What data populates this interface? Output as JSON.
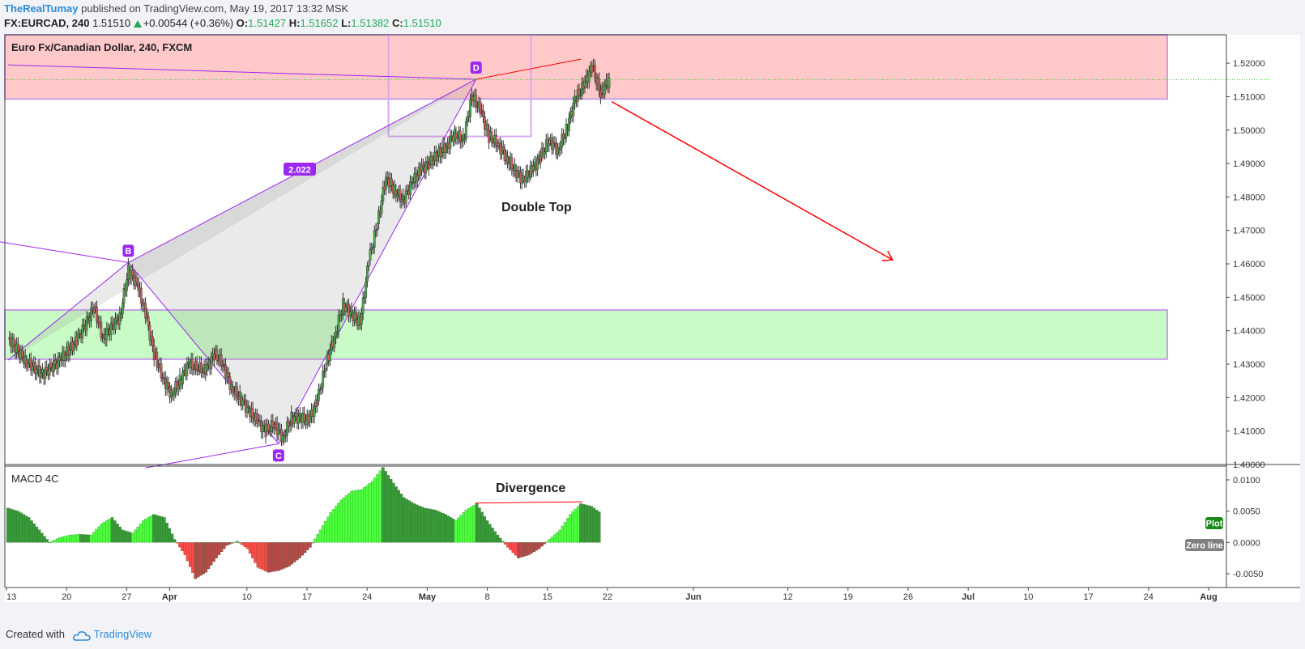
{
  "header": {
    "user": "TheRealTumay",
    "published": "published on TradingView.com, May 19, 2017 13:32 MSK",
    "symbol": "FX:EURCAD, 240",
    "price": "1.51510",
    "change": "+0.00544 (+0.36%)",
    "o_label": "O:",
    "o": "1.51427",
    "h_label": "H:",
    "h": "1.51652",
    "l_label": "L:",
    "l": "1.51382",
    "c_label": "C:",
    "c": "1.51510"
  },
  "footer": {
    "created_with": "Created with",
    "brand": "TradingView",
    "icon": "cloud-icon"
  },
  "colors": {
    "up": "#26a65b",
    "link": "#2e8bd6",
    "harmonic": "#9c27f0",
    "arrow": "#ff0000",
    "resistance_zone": "#ffc9c9",
    "support_zone": "#c8fbc5",
    "macd_up_strong": "#4cff3c",
    "macd_up_weak": "#3a9a3a",
    "macd_down_strong": "#ff4a4a",
    "macd_down_weak": "#b84b4b"
  },
  "chart_data": {
    "type": "candlestick",
    "title": "Euro Fx/Canadian Dollar, 240, FXCM",
    "ylim": [
      1.4,
      1.5285
    ],
    "y_ticks": [
      "1.52000",
      "1.51000",
      "1.50000",
      "1.49000",
      "1.48000",
      "1.47000",
      "1.46000",
      "1.45000",
      "1.44000",
      "1.43000",
      "1.42000",
      "1.41000",
      "1.40000"
    ],
    "x_ticks": [
      "13",
      "20",
      "27",
      "Apr",
      "10",
      "17",
      "24",
      "May",
      "8",
      "15",
      "22",
      "Jun",
      "12",
      "19",
      "26",
      "Jul",
      "10",
      "17",
      "24",
      "Aug"
    ],
    "x_tick_days": [
      0,
      7,
      14,
      19,
      28,
      35,
      42,
      49,
      56,
      63,
      70,
      80,
      91,
      98,
      105,
      112,
      119,
      126,
      133,
      140
    ],
    "current_price": 1.5151,
    "annotations": {
      "ratio": "2.022",
      "pattern_text": "Double Top",
      "macd_text": "Divergence"
    },
    "points": [
      {
        "label": "B",
        "day": 14.0,
        "price": 1.4604
      },
      {
        "label": "C",
        "day": 31.5,
        "price": 1.4062
      },
      {
        "label": "D",
        "day": 54.5,
        "price": 1.5152
      }
    ],
    "series": [
      {
        "day": 0,
        "price": 1.438
      },
      {
        "day": 2,
        "price": 1.431
      },
      {
        "day": 4,
        "price": 1.427
      },
      {
        "day": 6,
        "price": 1.431
      },
      {
        "day": 8,
        "price": 1.437
      },
      {
        "day": 10,
        "price": 1.447
      },
      {
        "day": 11,
        "price": 1.438
      },
      {
        "day": 13,
        "price": 1.444
      },
      {
        "day": 14,
        "price": 1.458
      },
      {
        "day": 15,
        "price": 1.454
      },
      {
        "day": 16,
        "price": 1.445
      },
      {
        "day": 17,
        "price": 1.433
      },
      {
        "day": 18,
        "price": 1.426
      },
      {
        "day": 19,
        "price": 1.421
      },
      {
        "day": 20,
        "price": 1.425
      },
      {
        "day": 21,
        "price": 1.43
      },
      {
        "day": 23,
        "price": 1.428
      },
      {
        "day": 24,
        "price": 1.433
      },
      {
        "day": 25,
        "price": 1.43
      },
      {
        "day": 26,
        "price": 1.423
      },
      {
        "day": 27,
        "price": 1.42
      },
      {
        "day": 28,
        "price": 1.416
      },
      {
        "day": 29,
        "price": 1.413
      },
      {
        "day": 30,
        "price": 1.41
      },
      {
        "day": 31,
        "price": 1.412
      },
      {
        "day": 32,
        "price": 1.408
      },
      {
        "day": 33,
        "price": 1.414
      },
      {
        "day": 34,
        "price": 1.414
      },
      {
        "day": 35,
        "price": 1.413
      },
      {
        "day": 36,
        "price": 1.419
      },
      {
        "day": 37,
        "price": 1.43
      },
      {
        "day": 38,
        "price": 1.438
      },
      {
        "day": 39,
        "price": 1.448
      },
      {
        "day": 40,
        "price": 1.445
      },
      {
        "day": 41,
        "price": 1.442
      },
      {
        "day": 42,
        "price": 1.461
      },
      {
        "day": 43,
        "price": 1.472
      },
      {
        "day": 44,
        "price": 1.486
      },
      {
        "day": 45,
        "price": 1.482
      },
      {
        "day": 46,
        "price": 1.479
      },
      {
        "day": 47,
        "price": 1.484
      },
      {
        "day": 48,
        "price": 1.488
      },
      {
        "day": 49,
        "price": 1.49
      },
      {
        "day": 51,
        "price": 1.495
      },
      {
        "day": 52,
        "price": 1.499
      },
      {
        "day": 53,
        "price": 1.497
      },
      {
        "day": 54,
        "price": 1.51
      },
      {
        "day": 55,
        "price": 1.506
      },
      {
        "day": 56,
        "price": 1.498
      },
      {
        "day": 57,
        "price": 1.496
      },
      {
        "day": 58,
        "price": 1.492
      },
      {
        "day": 59,
        "price": 1.488
      },
      {
        "day": 60,
        "price": 1.485
      },
      {
        "day": 61,
        "price": 1.488
      },
      {
        "day": 62,
        "price": 1.492
      },
      {
        "day": 63,
        "price": 1.497
      },
      {
        "day": 64,
        "price": 1.494
      },
      {
        "day": 65,
        "price": 1.5
      },
      {
        "day": 66,
        "price": 1.509
      },
      {
        "day": 67,
        "price": 1.513
      },
      {
        "day": 68,
        "price": 1.519
      },
      {
        "day": 69,
        "price": 1.511
      },
      {
        "day": 70,
        "price": 1.5151
      }
    ],
    "zones": [
      {
        "name": "resistance",
        "price_from": 1.5093,
        "price_to": 1.5285,
        "day_to": 135
      },
      {
        "name": "support",
        "price_from": 1.4315,
        "price_to": 1.4462,
        "day_to": 135
      }
    ],
    "macd": {
      "title": "MACD 4C",
      "ylim": [
        -0.0072,
        0.0122
      ],
      "y_ticks": [
        "0.0100",
        "0.0050",
        "0.0000",
        "-0.0050"
      ],
      "legend": [
        "Plot",
        "Zero line"
      ],
      "values": [
        0.0055,
        0.005,
        0.004,
        0.002,
        0.0,
        0.0008,
        0.0012,
        0.0013,
        0.0012,
        0.003,
        0.004,
        0.002,
        0.0015,
        0.0035,
        0.0045,
        0.004,
        0.0005,
        -0.002,
        -0.0058,
        -0.0048,
        -0.0025,
        -0.0005,
        0.0002,
        -0.001,
        -0.004,
        -0.0048,
        -0.0045,
        -0.0038,
        -0.0025,
        -0.0008,
        0.002,
        0.0048,
        0.0068,
        0.0082,
        0.0085,
        0.0098,
        0.012,
        0.0095,
        0.0072,
        0.0062,
        0.0055,
        0.0052,
        0.0045,
        0.0035,
        0.0052,
        0.0062,
        0.0035,
        0.0012,
        -0.0008,
        -0.0025,
        -0.002,
        -0.001,
        0.0005,
        0.002,
        0.0045,
        0.0062,
        0.0058,
        0.0046
      ]
    }
  }
}
